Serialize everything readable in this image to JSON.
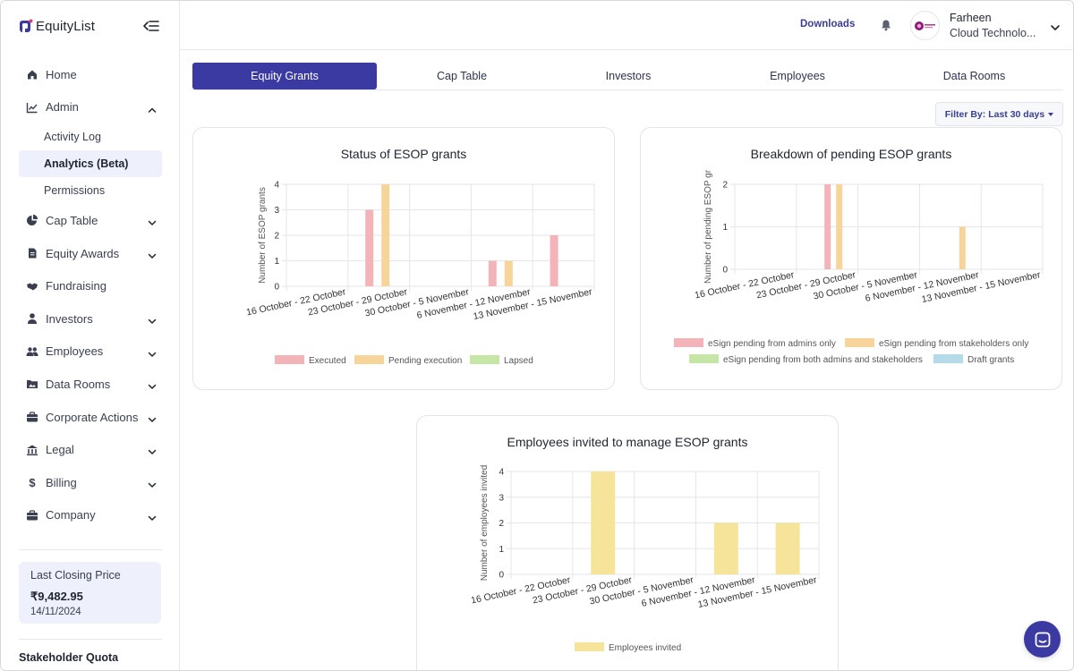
{
  "brand": {
    "name": "EquityList"
  },
  "sidebar": {
    "items": [
      {
        "label": "Home",
        "icon": "home-icon",
        "expandable": false
      },
      {
        "label": "Admin",
        "icon": "chart-line-icon",
        "expandable": true,
        "expanded": true,
        "children": [
          {
            "label": "Activity Log",
            "active": false
          },
          {
            "label": "Analytics (Beta)",
            "active": true
          },
          {
            "label": "Permissions",
            "active": false
          }
        ]
      },
      {
        "label": "Cap Table",
        "icon": "pie-chart-icon",
        "expandable": true
      },
      {
        "label": "Equity Awards",
        "icon": "document-icon",
        "expandable": true
      },
      {
        "label": "Fundraising",
        "icon": "handshake-icon",
        "expandable": false
      },
      {
        "label": "Investors",
        "icon": "person-tie-icon",
        "expandable": true
      },
      {
        "label": "Employees",
        "icon": "users-icon",
        "expandable": true
      },
      {
        "label": "Data Rooms",
        "icon": "image-folder-icon",
        "expandable": true
      },
      {
        "label": "Corporate Actions",
        "icon": "briefcase-icon",
        "expandable": true
      },
      {
        "label": "Legal",
        "icon": "bank-icon",
        "expandable": true
      },
      {
        "label": "Billing",
        "icon": "dollar-icon",
        "expandable": true
      },
      {
        "label": "Company",
        "icon": "briefcase-icon",
        "expandable": true
      }
    ],
    "price_card": {
      "title": "Last Closing Price",
      "value": "₹9,482.95",
      "date": "14/11/2024"
    },
    "quota_label": "Stakeholder Quota"
  },
  "header": {
    "downloads_label": "Downloads",
    "user": {
      "name": "Farheen",
      "company": "Cloud Technolo..."
    }
  },
  "tabs": [
    {
      "label": "Equity Grants",
      "active": true
    },
    {
      "label": "Cap Table",
      "active": false
    },
    {
      "label": "Investors",
      "active": false
    },
    {
      "label": "Employees",
      "active": false
    },
    {
      "label": "Data Rooms",
      "active": false
    }
  ],
  "filter": {
    "label": "Filter By: Last 30 days"
  },
  "colors": {
    "accent": "#3b3aa3",
    "executed": "#f2b4b9",
    "pending_execution": "#f7d59a",
    "lapsed": "#c5e6a6",
    "draft": "#b5dbe8",
    "employees_invited": "#f5e49a"
  },
  "chart_data": [
    {
      "type": "bar",
      "title": "Status of ESOP grants",
      "ylabel": "Number of ESOP grants",
      "xlabel": "",
      "categories": [
        "16 October - 22 October",
        "23 October - 29 October",
        "30 October -  5 November",
        "6 November - 12 November",
        "13 November - 15 November"
      ],
      "ylim": [
        0,
        4
      ],
      "yticks": [
        "0",
        "1",
        "2",
        "3",
        "4"
      ],
      "grid": true,
      "legend": "bottom",
      "series": [
        {
          "name": "Executed",
          "values": [
            0,
            3,
            0,
            1,
            2
          ]
        },
        {
          "name": "Pending execution",
          "values": [
            0,
            4,
            0,
            1,
            0
          ]
        },
        {
          "name": "Lapsed",
          "values": [
            0,
            0,
            0,
            0,
            0
          ]
        }
      ]
    },
    {
      "type": "bar",
      "title": "Breakdown of pending ESOP grants",
      "ylabel": "Number of pending ESOP gr",
      "xlabel": "",
      "categories": [
        "16 October - 22 October",
        "23 October - 29 October",
        "30 October -  5 November",
        "6 November - 12 November",
        "13 November - 15 November"
      ],
      "ylim": [
        0,
        2
      ],
      "yticks": [
        "0",
        "1",
        "2"
      ],
      "grid": true,
      "legend": "bottom",
      "series": [
        {
          "name": "eSign pending from admins only",
          "values": [
            0,
            2,
            0,
            0,
            0
          ]
        },
        {
          "name": "eSign pending from stakeholders only",
          "values": [
            0,
            2,
            0,
            1,
            0
          ]
        },
        {
          "name": "eSign pending from both admins and stakeholders",
          "values": [
            0,
            0,
            0,
            0,
            0
          ]
        },
        {
          "name": "Draft grants",
          "values": [
            0,
            0,
            0,
            0,
            0
          ]
        }
      ]
    },
    {
      "type": "bar",
      "title": "Employees invited to manage ESOP grants",
      "ylabel": "Number of employees invited",
      "xlabel": "",
      "categories": [
        "16 October - 22 October",
        "23 October - 29 October",
        "30 October -  5 November",
        "6 November - 12 November",
        "13 November - 15 November"
      ],
      "ylim": [
        0,
        4
      ],
      "yticks": [
        "0",
        "1",
        "2",
        "3",
        "4"
      ],
      "grid": true,
      "legend": "bottom",
      "series": [
        {
          "name": "Employees invited",
          "values": [
            0,
            4,
            0,
            2,
            2
          ]
        }
      ]
    }
  ]
}
